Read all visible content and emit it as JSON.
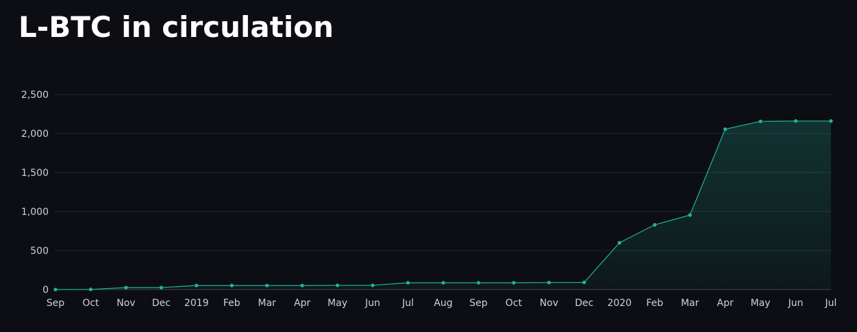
{
  "title": "L-BTC in circulation",
  "colors": {
    "background": "#0d0e13",
    "line": "#1fb69b",
    "grid": "#1c2a2e",
    "tick_text": "#cfd2d8",
    "title_text": "#ffffff"
  },
  "chart_data": {
    "type": "area",
    "title": "L-BTC in circulation",
    "xlabel": "",
    "ylabel": "",
    "ylim": [
      0,
      2500
    ],
    "yticks": [
      0,
      500,
      1000,
      1500,
      2000,
      2500
    ],
    "ytick_labels": [
      "0",
      "500",
      "1,000",
      "1,500",
      "2,000",
      "2,500"
    ],
    "categories": [
      "Sep",
      "Oct",
      "Nov",
      "Dec",
      "2019",
      "Feb",
      "Mar",
      "Apr",
      "May",
      "Jun",
      "Jul",
      "Aug",
      "Sep",
      "Oct",
      "Nov",
      "Dec",
      "2020",
      "Feb",
      "Mar",
      "Apr",
      "May",
      "Jun",
      "Jul"
    ],
    "values": [
      0,
      2,
      25,
      25,
      52,
      52,
      52,
      52,
      54,
      54,
      87,
      87,
      87,
      87,
      90,
      92,
      600,
      830,
      955,
      2055,
      2155,
      2160,
      2160
    ],
    "grid": true,
    "legend": "none"
  }
}
